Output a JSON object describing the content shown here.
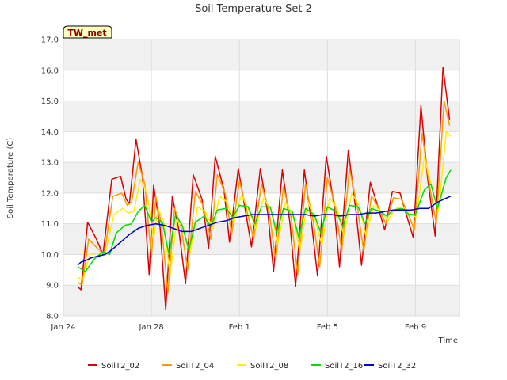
{
  "chart_data": {
    "type": "line",
    "title": "Soil Temperature Set 2",
    "xlabel": "Time",
    "ylabel": "Soil Temperature (C)",
    "badge": "TW_met",
    "ylim": [
      8.0,
      17.0
    ],
    "yticks": [
      "8.0",
      "9.0",
      "10.0",
      "11.0",
      "12.0",
      "13.0",
      "14.0",
      "15.0",
      "16.0",
      "17.0"
    ],
    "xlim_days": [
      0,
      18
    ],
    "xticks": [
      {
        "day": 0,
        "label": "Jan 24"
      },
      {
        "day": 4,
        "label": "Jan 28"
      },
      {
        "day": 8,
        "label": "Feb 1"
      },
      {
        "day": 12,
        "label": "Feb 5"
      },
      {
        "day": 16,
        "label": "Feb 9"
      }
    ],
    "grid": true,
    "legend_position": "bottom",
    "series": [
      {
        "name": "SoilT2_02",
        "color": "#dd0000",
        "x": [
          0.65,
          0.8,
          1.1,
          1.5,
          1.8,
          2.2,
          2.6,
          2.85,
          3.0,
          3.3,
          3.6,
          3.9,
          4.1,
          4.4,
          4.65,
          4.95,
          5.25,
          5.55,
          5.9,
          6.3,
          6.6,
          6.9,
          7.3,
          7.55,
          7.95,
          8.3,
          8.55,
          8.95,
          9.3,
          9.55,
          9.95,
          10.3,
          10.55,
          10.95,
          11.3,
          11.55,
          11.95,
          12.3,
          12.55,
          12.95,
          13.3,
          13.55,
          13.95,
          14.3,
          14.6,
          14.95,
          15.3,
          15.5,
          15.9,
          16.25,
          16.55,
          16.9,
          17.25,
          17.55,
          17.8,
          18.0
        ],
        "y": [
          8.95,
          8.85,
          11.05,
          10.5,
          10.0,
          12.45,
          12.55,
          11.8,
          11.65,
          13.75,
          12.5,
          9.35,
          12.25,
          10.85,
          8.2,
          11.9,
          10.8,
          9.05,
          12.6,
          11.8,
          10.2,
          13.2,
          12.1,
          10.4,
          12.8,
          11.3,
          10.25,
          12.8,
          11.3,
          9.45,
          12.75,
          11.0,
          8.95,
          12.75,
          10.9,
          9.3,
          13.2,
          11.6,
          9.6,
          13.4,
          11.4,
          9.65,
          12.35,
          11.55,
          10.8,
          12.05,
          12.0,
          11.5,
          10.55,
          14.85,
          12.5,
          10.6,
          16.1,
          14.4,
          null,
          null
        ]
      },
      {
        "name": "SoilT2_04",
        "color": "#ff9900",
        "x": [
          0.65,
          0.85,
          1.15,
          1.55,
          1.85,
          2.25,
          2.65,
          2.9,
          3.1,
          3.4,
          3.7,
          4.0,
          4.2,
          4.45,
          4.75,
          5.05,
          5.35,
          5.65,
          6.0,
          6.35,
          6.7,
          7.0,
          7.35,
          7.65,
          8.0,
          8.35,
          8.65,
          9.0,
          9.35,
          9.65,
          10.0,
          10.35,
          10.65,
          11.0,
          11.35,
          11.65,
          12.0,
          12.35,
          12.65,
          13.0,
          13.35,
          13.65,
          14.0,
          14.35,
          14.65,
          15.0,
          15.35,
          15.6,
          15.95,
          16.3,
          16.6,
          16.95,
          17.3,
          17.55
        ],
        "y": [
          9.1,
          9.0,
          10.5,
          10.2,
          10.0,
          11.9,
          12.0,
          11.6,
          11.7,
          13.0,
          12.3,
          9.9,
          11.9,
          11.0,
          8.75,
          11.5,
          10.9,
          9.5,
          12.05,
          11.6,
          10.5,
          12.6,
          12.0,
          10.65,
          12.4,
          11.4,
          10.5,
          12.3,
          11.4,
          9.8,
          12.2,
          11.2,
          9.35,
          12.3,
          11.1,
          9.6,
          12.5,
          11.6,
          10.1,
          12.8,
          11.6,
          10.1,
          11.9,
          11.5,
          11.0,
          11.85,
          11.8,
          11.45,
          10.8,
          13.95,
          12.4,
          11.0,
          15.0,
          14.2
        ]
      },
      {
        "name": "SoilT2_08",
        "color": "#ffee00",
        "x": [
          0.65,
          0.9,
          1.2,
          1.6,
          1.9,
          2.3,
          2.7,
          2.95,
          3.2,
          3.5,
          3.8,
          4.1,
          4.3,
          4.55,
          4.85,
          5.15,
          5.45,
          5.75,
          6.1,
          6.45,
          6.8,
          7.1,
          7.45,
          7.75,
          8.1,
          8.45,
          8.75,
          9.1,
          9.45,
          9.75,
          10.1,
          10.45,
          10.75,
          11.1,
          11.45,
          11.75,
          12.1,
          12.45,
          12.75,
          13.1,
          13.45,
          13.75,
          14.1,
          14.45,
          14.75,
          15.1,
          15.45,
          15.7,
          16.05,
          16.4,
          16.7,
          17.05,
          17.4,
          17.6
        ],
        "y": [
          9.25,
          9.2,
          10.0,
          10.05,
          10.05,
          11.3,
          11.5,
          11.35,
          11.4,
          12.45,
          12.0,
          10.5,
          11.5,
          11.1,
          9.3,
          11.1,
          10.9,
          10.0,
          11.55,
          11.4,
          10.85,
          11.9,
          11.7,
          11.0,
          11.95,
          11.4,
          10.85,
          11.85,
          11.4,
          10.35,
          11.7,
          11.2,
          10.1,
          11.75,
          11.1,
          10.3,
          11.85,
          11.5,
          10.6,
          12.0,
          11.6,
          10.6,
          11.6,
          11.4,
          11.1,
          11.5,
          11.55,
          11.35,
          11.2,
          13.2,
          12.3,
          11.4,
          14.0,
          13.85
        ]
      },
      {
        "name": "SoilT2_16",
        "color": "#00dd00",
        "x": [
          0.65,
          1.0,
          1.4,
          1.8,
          2.1,
          2.4,
          2.8,
          3.1,
          3.4,
          3.7,
          4.0,
          4.2,
          4.5,
          4.8,
          5.1,
          5.4,
          5.7,
          6.0,
          6.4,
          6.7,
          7.0,
          7.4,
          7.7,
          8.0,
          8.4,
          8.7,
          9.0,
          9.4,
          9.7,
          10.0,
          10.4,
          10.7,
          11.0,
          11.4,
          11.7,
          12.0,
          12.4,
          12.7,
          13.0,
          13.4,
          13.7,
          14.0,
          14.4,
          14.7,
          15.0,
          15.4,
          15.7,
          16.0,
          16.4,
          16.7,
          17.0,
          17.4,
          17.6
        ],
        "y": [
          9.6,
          9.45,
          9.85,
          10.1,
          10.0,
          10.7,
          10.95,
          11.0,
          11.4,
          11.6,
          11.05,
          11.2,
          11.05,
          10.0,
          11.3,
          10.95,
          10.15,
          11.05,
          11.25,
          10.9,
          11.45,
          11.5,
          11.2,
          11.6,
          11.55,
          11.0,
          11.55,
          11.55,
          10.7,
          11.5,
          11.4,
          10.55,
          11.5,
          11.3,
          10.7,
          11.55,
          11.4,
          10.9,
          11.6,
          11.55,
          11.0,
          11.5,
          11.4,
          11.25,
          11.45,
          11.5,
          11.3,
          11.3,
          12.1,
          12.3,
          11.5,
          12.5,
          12.75
        ]
      },
      {
        "name": "SoilT2_32",
        "color": "#0000cc",
        "x": [
          0.65,
          0.8,
          1.0,
          1.3,
          1.6,
          1.9,
          2.2,
          2.6,
          3.0,
          3.4,
          3.8,
          4.2,
          4.6,
          5.0,
          5.4,
          5.8,
          6.2,
          6.6,
          7.0,
          7.4,
          7.8,
          8.2,
          8.6,
          9.0,
          9.4,
          9.8,
          10.2,
          10.6,
          11.0,
          11.4,
          11.8,
          12.2,
          12.6,
          13.0,
          13.4,
          13.8,
          14.2,
          14.6,
          15.0,
          15.4,
          15.8,
          16.2,
          16.6,
          17.0,
          17.3,
          17.6
        ],
        "y": [
          9.65,
          9.75,
          9.8,
          9.9,
          9.95,
          10.0,
          10.15,
          10.4,
          10.65,
          10.85,
          10.95,
          11.0,
          10.95,
          10.85,
          10.75,
          10.75,
          10.85,
          10.95,
          11.05,
          11.1,
          11.2,
          11.25,
          11.3,
          11.3,
          11.3,
          11.3,
          11.3,
          11.3,
          11.3,
          11.25,
          11.3,
          11.3,
          11.25,
          11.3,
          11.3,
          11.35,
          11.35,
          11.4,
          11.45,
          11.45,
          11.45,
          11.5,
          11.5,
          11.7,
          11.8,
          11.9
        ]
      }
    ]
  }
}
